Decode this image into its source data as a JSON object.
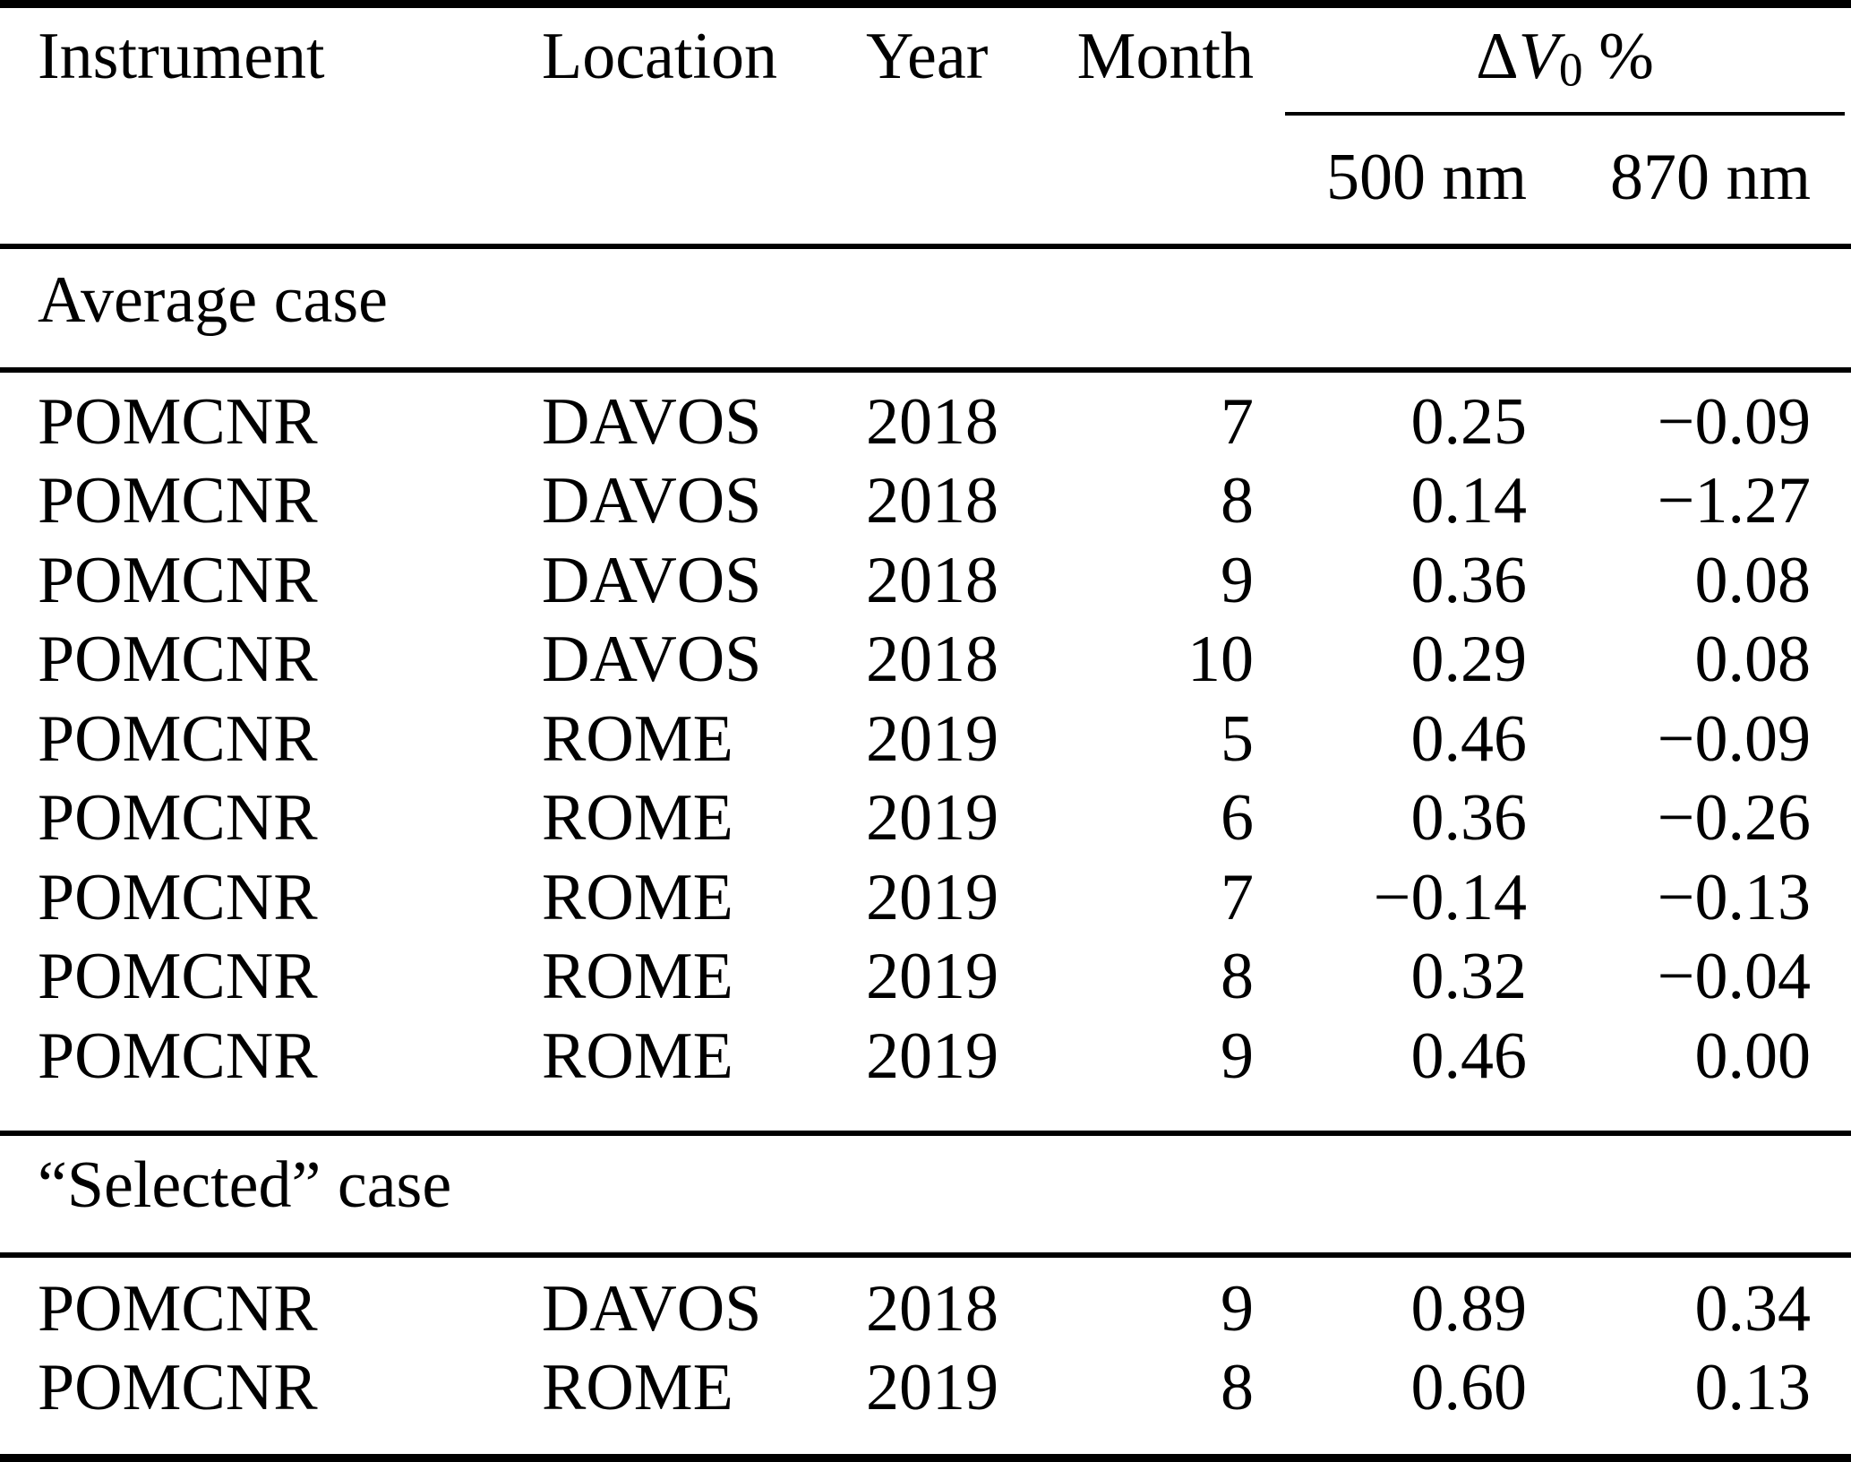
{
  "page": {
    "background": "#ffffff",
    "text_color": "#000000"
  },
  "table": {
    "title_row": {
      "instrument": "Instrument",
      "location": "Location",
      "year": "Year",
      "month": "Month",
      "delta_v0_group": {
        "delta": "Δ",
        "v": "V",
        "sub": "0",
        "percent": "%"
      },
      "wavelength_columns": [
        "500 nm",
        "870 nm"
      ]
    },
    "sections": [
      {
        "label": "Average case",
        "rows": [
          {
            "instrument": "POMCNR",
            "location": "DAVOS",
            "year": "2018",
            "month": "7",
            "v500": "0.25",
            "v870": "−0.09"
          },
          {
            "instrument": "POMCNR",
            "location": "DAVOS",
            "year": "2018",
            "month": "8",
            "v500": "0.14",
            "v870": "−1.27"
          },
          {
            "instrument": "POMCNR",
            "location": "DAVOS",
            "year": "2018",
            "month": "9",
            "v500": "0.36",
            "v870": "0.08"
          },
          {
            "instrument": "POMCNR",
            "location": "DAVOS",
            "year": "2018",
            "month": "10",
            "v500": "0.29",
            "v870": "0.08"
          },
          {
            "instrument": "POMCNR",
            "location": "ROME",
            "year": "2019",
            "month": "5",
            "v500": "0.46",
            "v870": "−0.09"
          },
          {
            "instrument": "POMCNR",
            "location": "ROME",
            "year": "2019",
            "month": "6",
            "v500": "0.36",
            "v870": "−0.26"
          },
          {
            "instrument": "POMCNR",
            "location": "ROME",
            "year": "2019",
            "month": "7",
            "v500": "−0.14",
            "v870": "−0.13"
          },
          {
            "instrument": "POMCNR",
            "location": "ROME",
            "year": "2019",
            "month": "8",
            "v500": "0.32",
            "v870": "−0.04"
          },
          {
            "instrument": "POMCNR",
            "location": "ROME",
            "year": "2019",
            "month": "9",
            "v500": "0.46",
            "v870": "0.00"
          }
        ]
      },
      {
        "label": "“Selected” case",
        "rows": [
          {
            "instrument": "POMCNR",
            "location": "DAVOS",
            "year": "2018",
            "month": "9",
            "v500": "0.89",
            "v870": "0.34"
          },
          {
            "instrument": "POMCNR",
            "location": "ROME",
            "year": "2019",
            "month": "8",
            "v500": "0.60",
            "v870": "0.13"
          }
        ]
      }
    ]
  }
}
